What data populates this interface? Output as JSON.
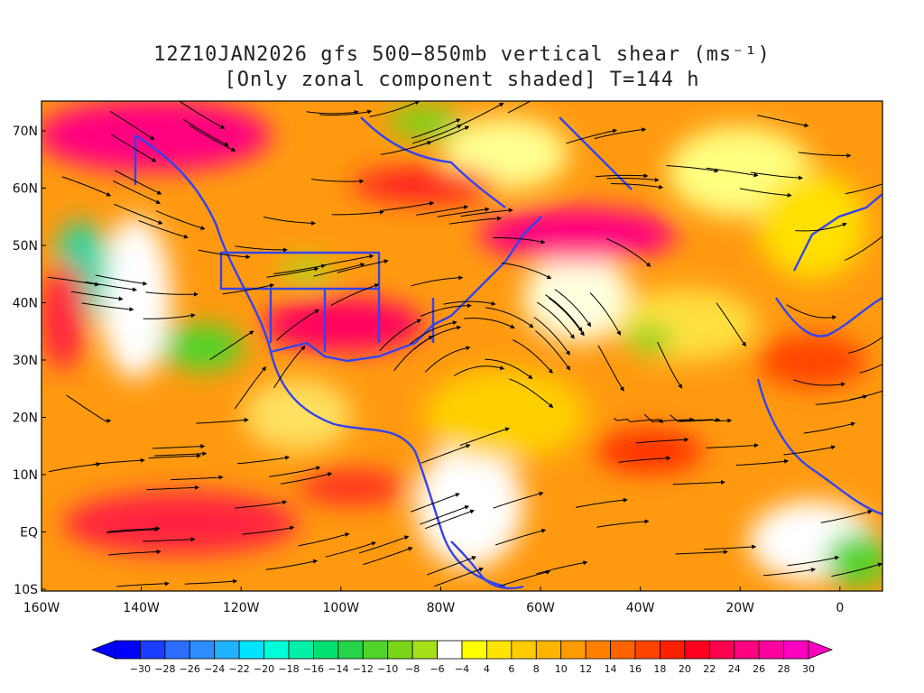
{
  "title": {
    "line1": "12Z10JAN2026 gfs 500−850mb vertical shear (ms⁻¹)",
    "line2": "[Only zonal component shaded] T=144 h"
  },
  "axes": {
    "lat_labels": [
      "70N",
      "60N",
      "50N",
      "40N",
      "30N",
      "20N",
      "10N",
      "EQ",
      "10S"
    ],
    "lon_labels": [
      "160W",
      "140W",
      "120W",
      "100W",
      "80W",
      "60W",
      "40W",
      "20W",
      "0"
    ]
  },
  "colorbar": {
    "labels": [
      "−30",
      "−28",
      "−26",
      "−24",
      "−22",
      "−20",
      "−18",
      "−16",
      "−14",
      "−12",
      "−10",
      "−8",
      "−6",
      "−4",
      "4",
      "6",
      "8",
      "10",
      "12",
      "14",
      "16",
      "18",
      "20",
      "22",
      "24",
      "26",
      "28",
      "30"
    ],
    "colors": [
      "#0000ff",
      "#1a3dff",
      "#2a6dff",
      "#2f8cff",
      "#1fb2ff",
      "#00e4ff",
      "#00ffd8",
      "#00f0a8",
      "#00e070",
      "#26d44a",
      "#50d42a",
      "#7ad41a",
      "#a6e01a",
      "#ffffff",
      "#ffff00",
      "#ffe400",
      "#ffcc00",
      "#ffb400",
      "#ff9c00",
      "#ff8000",
      "#ff6400",
      "#ff4400",
      "#ff2000",
      "#ff0020",
      "#ff0050",
      "#ff0080",
      "#ff00a0",
      "#ff00c0"
    ]
  },
  "colors": {
    "coastline": "#3344ee",
    "streamline": "#000000"
  }
}
